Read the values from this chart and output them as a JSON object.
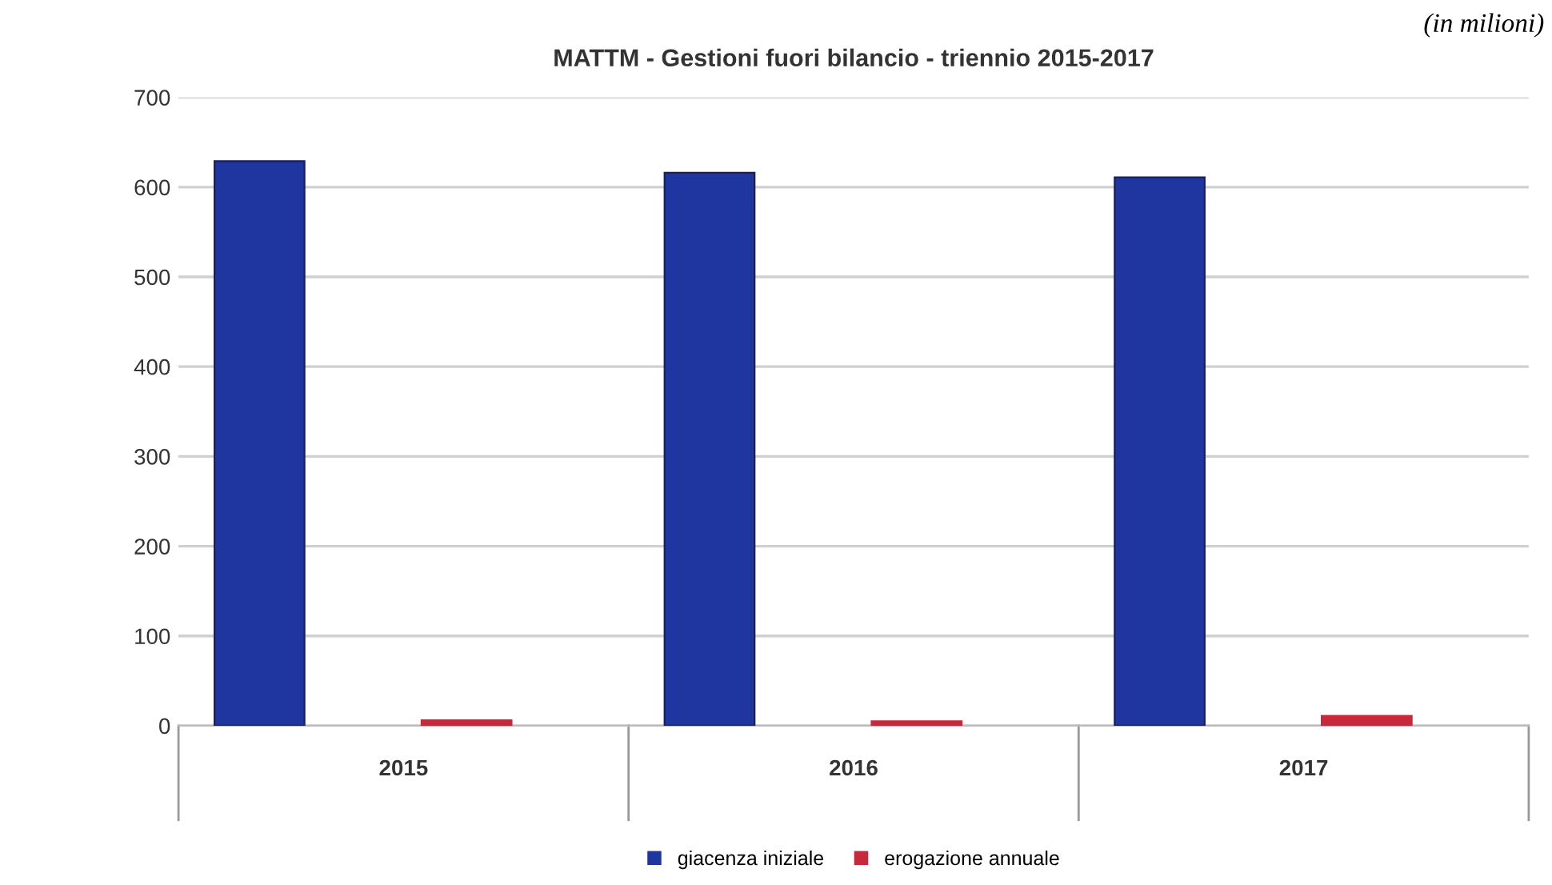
{
  "chart_data": {
    "type": "bar",
    "title": "MATTM - Gestioni fuori bilancio - triennio 2015-2017",
    "annotations": [
      "(in milioni)"
    ],
    "categories": [
      "2015",
      "2016",
      "2017"
    ],
    "series": [
      {
        "name": "giacenza iniziale",
        "color": "#1f36a0",
        "values": [
          629,
          616,
          611
        ]
      },
      {
        "name": "erogazione annuale",
        "color": "#c8283c",
        "values": [
          6,
          5,
          11
        ]
      }
    ],
    "ylim": [
      0,
      700
    ],
    "yticks": [
      0,
      100,
      200,
      300,
      400,
      500,
      600,
      700
    ],
    "grid": "y",
    "legend": "bottom"
  }
}
